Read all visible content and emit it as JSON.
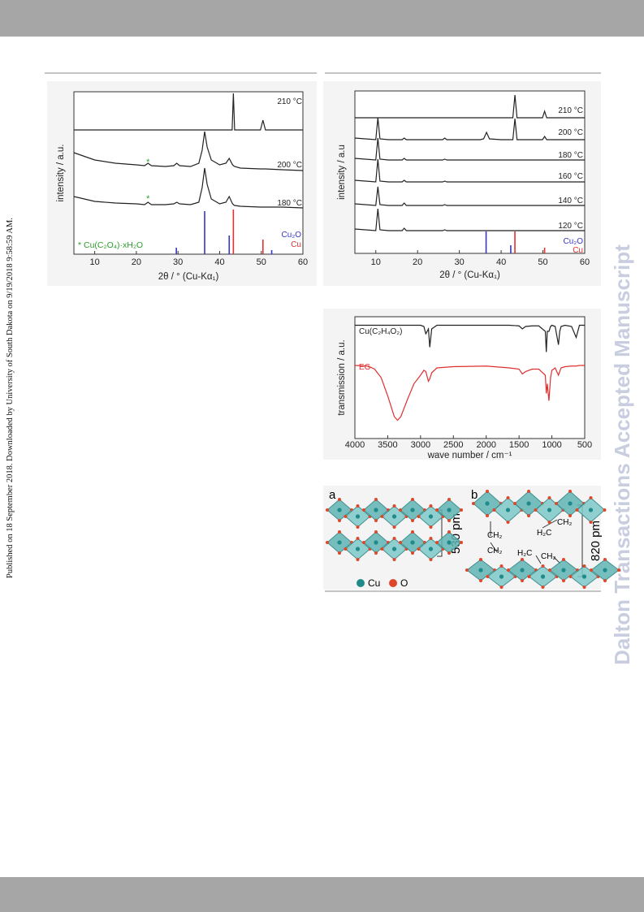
{
  "page": {
    "sidebar": "Published on 18 September 2018. Downloaded by University of South Dakota on 9/19/2018 9:58:59 AM.",
    "watermark": "Dalton Transactions Accepted Manuscript"
  },
  "chart_data": [
    {
      "type": "line",
      "x_label": "2θ / ° (Cu-Kα₁)",
      "y_label": "intensity / a.u.",
      "xlim": [
        5,
        60
      ],
      "xticks": [
        10,
        20,
        30,
        40,
        50,
        60
      ],
      "ylim": [
        0,
        100
      ],
      "x": [
        5,
        10,
        15,
        20,
        22,
        22.8,
        23.6,
        27,
        29,
        29.7,
        30.4,
        33,
        35,
        35.8,
        36.4,
        37,
        38,
        40,
        41.5,
        42.3,
        43,
        43.3,
        43.6,
        45,
        49.8,
        50.4,
        51,
        55,
        60
      ],
      "series": [
        {
          "name": "210 °C",
          "color": "#222222",
          "values": [
            76.5,
            76.5,
            76.5,
            76.5,
            76.5,
            76.5,
            76.5,
            76.5,
            76.5,
            76.5,
            76.5,
            76.5,
            76.5,
            76.5,
            76.5,
            76.5,
            76.5,
            76.5,
            76.5,
            76.5,
            76.5,
            99,
            76.5,
            76.5,
            76.5,
            82.5,
            76.5,
            76.5,
            76.5
          ]
        },
        {
          "name": "200 °C",
          "color": "#222222",
          "values": [
            62.5,
            58,
            56,
            55,
            54.5,
            56,
            54.5,
            54,
            54.5,
            56,
            54.5,
            54,
            56,
            64,
            75.5,
            66,
            58,
            55,
            56,
            59,
            55.5,
            54.5,
            54,
            53,
            52.5,
            52.5,
            52.5,
            52,
            51.5
          ]
        },
        {
          "name": "180 °C",
          "color": "#222222",
          "values": [
            35.5,
            32.5,
            31.5,
            31,
            30.5,
            32,
            30.5,
            30.5,
            31,
            32,
            31,
            30.5,
            32,
            41,
            53,
            43,
            34,
            31,
            32,
            35.5,
            31.5,
            30.5,
            30,
            29.5,
            29,
            29,
            29,
            29,
            28.5
          ]
        }
      ],
      "reference": [
        {
          "name": "Cu₂O",
          "color": "#3535c8",
          "positions": [
            29.6,
            36.4,
            42.3,
            52.5
          ],
          "heights": [
            4,
            26.5,
            11.5,
            2.5
          ]
        },
        {
          "name": "Cu",
          "color": "#e03030",
          "positions": [
            43.3,
            50.4
          ],
          "heights": [
            27.5,
            9
          ]
        }
      ],
      "markers": {
        "symbol": "*",
        "label": "* Cu(C₂O₄)·xH₂O",
        "color": "#2a9d2a",
        "x": [
          22.8,
          22.8
        ],
        "y": [
          56,
          33.5
        ]
      }
    },
    {
      "type": "line",
      "x_label": "2θ / ° (Cu-Kα₁)",
      "y_label": "intensity / a.u",
      "xlim": [
        5,
        60
      ],
      "xticks": [
        10,
        20,
        30,
        40,
        50,
        60
      ],
      "ylim": [
        0,
        100
      ],
      "x": [
        5,
        10,
        10.5,
        11,
        13,
        16.3,
        16.8,
        17.3,
        20,
        26,
        26.5,
        27,
        30,
        35,
        35.8,
        36.5,
        37.2,
        40,
        42.8,
        43.3,
        43.8,
        48,
        49.9,
        50.4,
        50.9,
        55,
        60
      ],
      "series": [
        {
          "name": "210 °C",
          "color": "#222222",
          "values": [
            83.5,
            83.5,
            83.5,
            83.5,
            83.5,
            83.5,
            83.5,
            83.5,
            83.5,
            83.5,
            83.5,
            83.5,
            83.5,
            83.5,
            83.5,
            83.5,
            83.5,
            83.5,
            83.5,
            97.5,
            83.5,
            83.5,
            83.5,
            87.5,
            83.5,
            83.5,
            83.5
          ]
        },
        {
          "name": "200 °C",
          "color": "#222222",
          "values": [
            71,
            70,
            83.5,
            70.5,
            70,
            70,
            71,
            70,
            70,
            70,
            71,
            70,
            70,
            70,
            70.5,
            74.5,
            70.5,
            70,
            70,
            83,
            70,
            70,
            70,
            72,
            70,
            70,
            70
          ]
        },
        {
          "name": "180 °C",
          "color": "#222222",
          "values": [
            58.5,
            57.5,
            71,
            58,
            57.5,
            57.5,
            58.5,
            57.5,
            57.5,
            57.5,
            58,
            57.5,
            57.5,
            57.5,
            57.5,
            57.5,
            57.5,
            57.5,
            57.5,
            57.5,
            57.5,
            57.5,
            57.5,
            57.5,
            57.5,
            57.5,
            57.5
          ]
        },
        {
          "name": "160 °C",
          "color": "#222222",
          "values": [
            45,
            44,
            58,
            44.5,
            44,
            44,
            45,
            44,
            44,
            44,
            44.5,
            44,
            44,
            44,
            44,
            44,
            44,
            44,
            44,
            44,
            44,
            44,
            44,
            44,
            44,
            44,
            44
          ]
        },
        {
          "name": "140 °C",
          "color": "#222222",
          "values": [
            30.5,
            29.5,
            41,
            30,
            29.5,
            29.5,
            31,
            29.5,
            29.5,
            29.5,
            30,
            29.5,
            29.5,
            29.5,
            29.5,
            29.5,
            29.5,
            29.5,
            29.5,
            29.5,
            29.5,
            29.5,
            29.5,
            29.5,
            29.5,
            29.5,
            29.5
          ]
        },
        {
          "name": "120 °C",
          "color": "#222222",
          "values": [
            15,
            14,
            27.5,
            14.5,
            14,
            14,
            15.5,
            14,
            14,
            14,
            14.5,
            14,
            14,
            14,
            14,
            14,
            14,
            14,
            14,
            14,
            14,
            14,
            14,
            14,
            14,
            14,
            14
          ]
        }
      ],
      "reference": [
        {
          "name": "Cu₂O",
          "color": "#3535c8",
          "positions": [
            36.4,
            42.3
          ],
          "heights": [
            13.5,
            5
          ]
        },
        {
          "name": "Cu",
          "color": "#e03030",
          "positions": [
            43.3,
            50.4
          ],
          "heights": [
            13.5,
            3.5
          ]
        }
      ]
    },
    {
      "type": "line",
      "x_label": "wave number / cm⁻¹",
      "y_label": "transmission / a.u.",
      "xlim": [
        4000,
        500
      ],
      "xticks": [
        4000,
        3500,
        3000,
        2500,
        2000,
        1500,
        1000,
        500
      ],
      "ylim": [
        0,
        100
      ],
      "x": [
        4000,
        3800,
        3700,
        3600,
        3500,
        3400,
        3350,
        3300,
        3200,
        3100,
        3000,
        2950,
        2920,
        2880,
        2860,
        2830,
        2750,
        2500,
        2000,
        1650,
        1500,
        1450,
        1400,
        1300,
        1200,
        1100,
        1085,
        1070,
        1045,
        1020,
        1000,
        950,
        900,
        880,
        860,
        800,
        700,
        630,
        580,
        500
      ],
      "series": [
        {
          "name": "Cu(C₂H₄O₂)",
          "color": "#222222",
          "values": [
            93,
            93,
            93,
            93,
            93,
            93,
            93,
            93,
            93,
            93,
            93,
            92,
            86,
            90,
            75,
            90,
            93,
            93,
            93,
            93,
            92.5,
            90,
            92,
            92.5,
            92.5,
            88,
            71,
            88,
            88,
            92,
            93,
            92,
            77,
            88,
            92,
            93,
            92,
            83,
            93,
            93
          ]
        },
        {
          "name": "EG",
          "color": "#e03030",
          "values": [
            60,
            59.5,
            57,
            50,
            35,
            18,
            15,
            18,
            32,
            45,
            52,
            56,
            55,
            47,
            49,
            54,
            58,
            59,
            59.5,
            58,
            57,
            53,
            55,
            57,
            57,
            52,
            37,
            45,
            31,
            50,
            56,
            58,
            52,
            55,
            58,
            59,
            59.5,
            59.5,
            60,
            60
          ]
        }
      ]
    }
  ],
  "structure": {
    "panel_a": "a",
    "panel_b": "b",
    "spacing_a": "530 pm",
    "spacing_b": "820 pm",
    "groups": [
      "CH₂",
      "CH₂",
      "H₂C",
      "CH₂",
      "H₂C",
      "CH₂"
    ],
    "legend": [
      "Cu",
      "O"
    ]
  }
}
